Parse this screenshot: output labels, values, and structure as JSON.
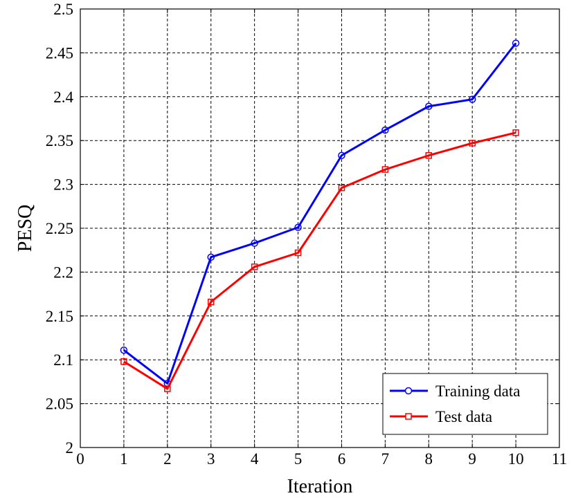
{
  "chart_data": {
    "type": "line",
    "xlabel": "Iteration",
    "ylabel": "PESQ",
    "xlim": [
      0,
      11
    ],
    "ylim": [
      2,
      2.5
    ],
    "xticks": [
      "0",
      "1",
      "2",
      "3",
      "4",
      "5",
      "6",
      "7",
      "8",
      "9",
      "10",
      "11"
    ],
    "yticks": [
      "2",
      "2.05",
      "2.1",
      "2.15",
      "2.2",
      "2.25",
      "2.3",
      "2.35",
      "2.4",
      "2.45",
      "2.5"
    ],
    "grid": true,
    "legend_position": "bottom-right",
    "x": [
      1,
      2,
      3,
      4,
      5,
      6,
      7,
      8,
      9,
      10
    ],
    "series": [
      {
        "name": "Training data",
        "color": "#0000ff",
        "marker": "circle",
        "values": [
          2.111,
          2.073,
          2.217,
          2.233,
          2.251,
          2.333,
          2.362,
          2.389,
          2.397,
          2.461
        ]
      },
      {
        "name": "Test data",
        "color": "#ff0000",
        "marker": "square",
        "values": [
          2.098,
          2.067,
          2.166,
          2.206,
          2.222,
          2.296,
          2.317,
          2.333,
          2.347,
          2.359
        ]
      }
    ]
  }
}
